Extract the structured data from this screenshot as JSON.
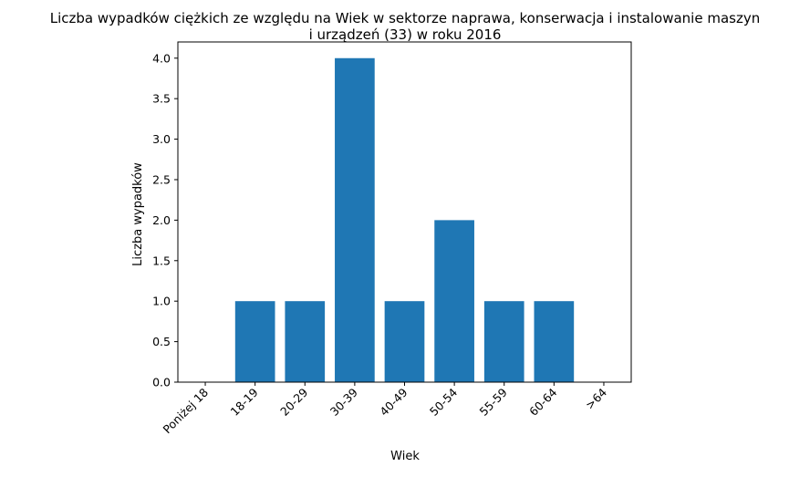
{
  "chart_data": {
    "type": "bar",
    "title_line1": "Liczba wypadków ciężkich ze względu na Wiek w sektorze naprawa, konserwacja i instalowanie maszyn",
    "title_line2": "i urządzeń  (33) w roku 2016",
    "xlabel": "Wiek",
    "ylabel": "Liczba wypadków",
    "categories": [
      "Poniżej 18",
      "18-19",
      "20-29",
      "30-39",
      "40-49",
      "50-54",
      "55-59",
      "60-64",
      ">64"
    ],
    "values": [
      0,
      1,
      1,
      4,
      1,
      2,
      1,
      1,
      0
    ],
    "ylim": [
      0,
      4.2
    ],
    "yticks": [
      "0.0",
      "0.5",
      "1.0",
      "1.5",
      "2.0",
      "2.5",
      "3.0",
      "3.5",
      "4.0"
    ],
    "bar_color": "#1f77b4",
    "grid": false
  }
}
